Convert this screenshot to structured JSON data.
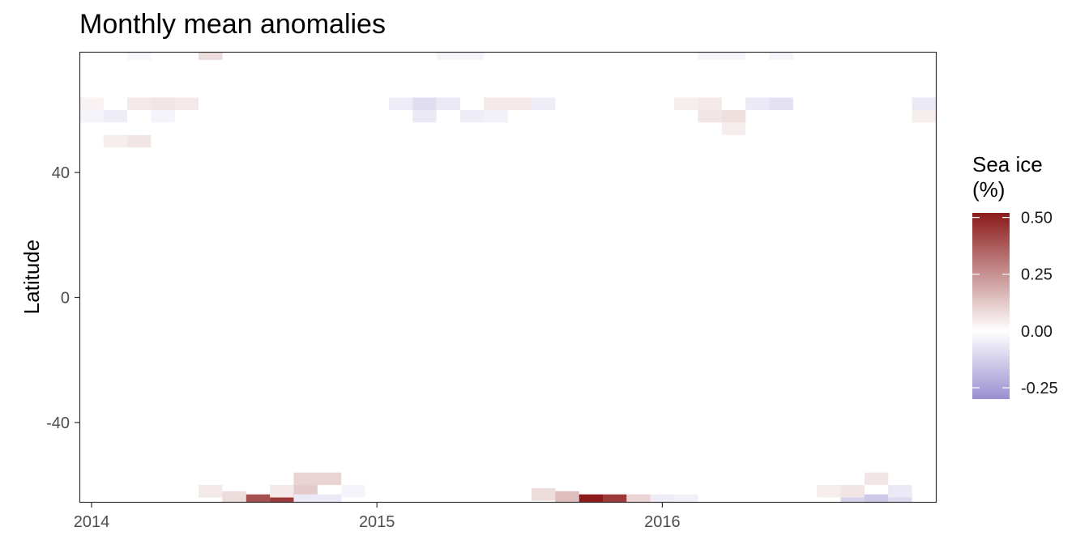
{
  "chart_data": {
    "type": "heatmap",
    "title": "Monthly mean anomalies",
    "xlabel": "",
    "ylabel": "Latitude",
    "x_ticks": [
      "2014",
      "2015",
      "2016"
    ],
    "y_ticks": [
      "40",
      "0",
      "-40"
    ],
    "xlim": [
      "2014-01",
      "2016-12"
    ],
    "ylim": [
      -65,
      80
    ],
    "grid": false,
    "legend": {
      "title": "Sea ice\n(%)",
      "position": "right",
      "ticks": [
        "0.50",
        "0.25",
        "0.00",
        "-0.25"
      ],
      "range": [
        -0.3,
        0.52
      ],
      "colors": {
        "high": "#8b1a1a",
        "mid": "#ffffff",
        "low": "#9a8fd0"
      }
    },
    "cells": [
      {
        "month": "2014-01",
        "lat": 62,
        "value": 0.03
      },
      {
        "month": "2014-01",
        "lat": 58,
        "value": -0.03
      },
      {
        "month": "2014-02",
        "lat": 58,
        "value": -0.05
      },
      {
        "month": "2014-02",
        "lat": 50,
        "value": 0.04
      },
      {
        "month": "2014-03",
        "lat": 62,
        "value": 0.05
      },
      {
        "month": "2014-03",
        "lat": 50,
        "value": 0.06
      },
      {
        "month": "2014-03",
        "lat": 78,
        "value": -0.02
      },
      {
        "month": "2014-04",
        "lat": 62,
        "value": 0.06
      },
      {
        "month": "2014-04",
        "lat": 58,
        "value": -0.03
      },
      {
        "month": "2014-05",
        "lat": 62,
        "value": 0.05
      },
      {
        "month": "2014-06",
        "lat": 78,
        "value": 0.08
      },
      {
        "month": "2014-06",
        "lat": -62,
        "value": 0.05
      },
      {
        "month": "2014-07",
        "lat": -64,
        "value": 0.08
      },
      {
        "month": "2014-08",
        "lat": -65,
        "value": 0.4
      },
      {
        "month": "2014-09",
        "lat": -65,
        "value": 0.45
      },
      {
        "month": "2014-09",
        "lat": -62,
        "value": 0.05
      },
      {
        "month": "2014-10",
        "lat": -58,
        "value": 0.1
      },
      {
        "month": "2014-10",
        "lat": -62,
        "value": 0.12
      },
      {
        "month": "2014-10",
        "lat": -65,
        "value": -0.06
      },
      {
        "month": "2014-11",
        "lat": -58,
        "value": 0.1
      },
      {
        "month": "2014-11",
        "lat": -65,
        "value": -0.06
      },
      {
        "month": "2014-12",
        "lat": -62,
        "value": -0.03
      },
      {
        "month": "2015-02",
        "lat": 62,
        "value": -0.05
      },
      {
        "month": "2015-03",
        "lat": 62,
        "value": -0.09
      },
      {
        "month": "2015-03",
        "lat": 58,
        "value": -0.06
      },
      {
        "month": "2015-04",
        "lat": 62,
        "value": -0.06
      },
      {
        "month": "2015-04",
        "lat": 78,
        "value": -0.03
      },
      {
        "month": "2015-05",
        "lat": 58,
        "value": -0.05
      },
      {
        "month": "2015-05",
        "lat": 78,
        "value": -0.03
      },
      {
        "month": "2015-06",
        "lat": 62,
        "value": 0.05
      },
      {
        "month": "2015-06",
        "lat": 58,
        "value": -0.04
      },
      {
        "month": "2015-07",
        "lat": 62,
        "value": 0.05
      },
      {
        "month": "2015-08",
        "lat": 62,
        "value": -0.05
      },
      {
        "month": "2015-08",
        "lat": -63,
        "value": 0.08
      },
      {
        "month": "2015-09",
        "lat": -64,
        "value": 0.15
      },
      {
        "month": "2015-10",
        "lat": -65,
        "value": 0.52
      },
      {
        "month": "2015-11",
        "lat": -65,
        "value": 0.45
      },
      {
        "month": "2015-12",
        "lat": -65,
        "value": 0.1
      },
      {
        "month": "2016-01",
        "lat": -65,
        "value": -0.05
      },
      {
        "month": "2016-02",
        "lat": -65,
        "value": -0.04
      },
      {
        "month": "2016-02",
        "lat": 62,
        "value": 0.04
      },
      {
        "month": "2016-03",
        "lat": 62,
        "value": 0.05
      },
      {
        "month": "2016-03",
        "lat": 58,
        "value": 0.06
      },
      {
        "month": "2016-03",
        "lat": 78,
        "value": -0.03
      },
      {
        "month": "2016-04",
        "lat": 58,
        "value": 0.07
      },
      {
        "month": "2016-04",
        "lat": 54,
        "value": 0.04
      },
      {
        "month": "2016-04",
        "lat": 78,
        "value": -0.03
      },
      {
        "month": "2016-05",
        "lat": 62,
        "value": -0.06
      },
      {
        "month": "2016-06",
        "lat": 62,
        "value": -0.08
      },
      {
        "month": "2016-06",
        "lat": 78,
        "value": -0.03
      },
      {
        "month": "2016-08",
        "lat": -62,
        "value": 0.04
      },
      {
        "month": "2016-09",
        "lat": -64,
        "value": -0.12
      },
      {
        "month": "2016-09",
        "lat": -62,
        "value": 0.06
      },
      {
        "month": "2016-10",
        "lat": -65,
        "value": -0.15
      },
      {
        "month": "2016-10",
        "lat": -58,
        "value": 0.06
      },
      {
        "month": "2016-11",
        "lat": -64,
        "value": -0.1
      },
      {
        "month": "2016-11",
        "lat": -62,
        "value": -0.06
      },
      {
        "month": "2016-12",
        "lat": 62,
        "value": -0.06
      },
      {
        "month": "2016-12",
        "lat": 58,
        "value": 0.04
      }
    ]
  }
}
